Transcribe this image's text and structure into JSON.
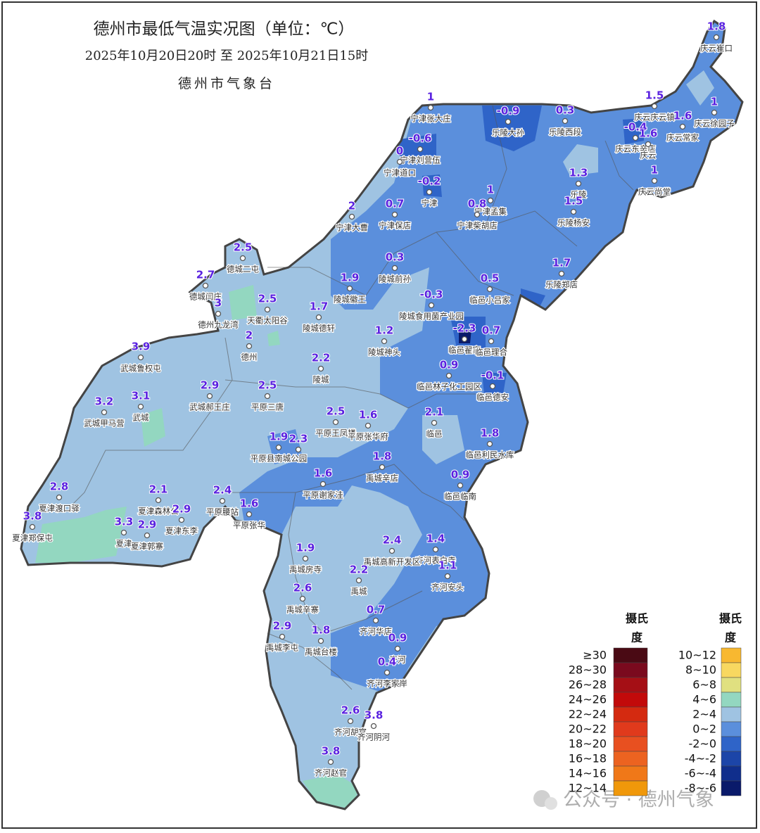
{
  "header": {
    "title": "德州市最低气温实况图（单位：℃）",
    "subtitle": "2025年10月20日20时  至  2025年10月21日15时",
    "agency": "德州市气象台"
  },
  "stations": [
    {
      "value": 1.8,
      "name": "庆云崔口"
    },
    {
      "value": 1,
      "name": "宁津张大庄"
    },
    {
      "value": -0.6,
      "name": "宁津刘营伍"
    },
    {
      "value": 0,
      "name": "宁津道口"
    },
    {
      "value": -0.9,
      "name": "乐陵大孙"
    },
    {
      "value": 0.3,
      "name": "乐陵西段"
    },
    {
      "value": 1.5,
      "name": "庆云庆云镇"
    },
    {
      "value": 1.6,
      "name": "庆云常家"
    },
    {
      "value": 1,
      "name": "庆云徐园子"
    },
    {
      "value": -0.4,
      "name": "庆云东辛店"
    },
    {
      "value": 1.6,
      "name": "庆云"
    },
    {
      "value": 1,
      "name": "庆云尚堂"
    },
    {
      "value": 1.3,
      "name": "乐陵"
    },
    {
      "value": 1.5,
      "name": "乐陵杨安"
    },
    {
      "value": -0.2,
      "name": "宁津"
    },
    {
      "value": 1,
      "name": "宁津孟集"
    },
    {
      "value": 0.8,
      "name": "宁津柴胡店"
    },
    {
      "value": 2,
      "name": "宁津大曹"
    },
    {
      "value": 0.7,
      "name": "宁津保店"
    },
    {
      "value": 2.5,
      "name": "德城二屯"
    },
    {
      "value": 2.7,
      "name": "德城闫庄"
    },
    {
      "value": 3,
      "name": "德州九龙湾"
    },
    {
      "value": 2.5,
      "name": "天衢太阳谷"
    },
    {
      "value": 0.3,
      "name": "陵城前孙"
    },
    {
      "value": 1.9,
      "name": "陵城徽王"
    },
    {
      "value": 1.7,
      "name": "陵城德轩"
    },
    {
      "value": -0.3,
      "name": "陵城食用菌产业园"
    },
    {
      "value": 0.5,
      "name": "临邑小吕家"
    },
    {
      "value": 1.7,
      "name": "乐陵郑店"
    },
    {
      "value": -2.3,
      "name": "临邑翟家"
    },
    {
      "value": 0.7,
      "name": "临邑理合"
    },
    {
      "value": 1.2,
      "name": "陵城神头"
    },
    {
      "value": 2,
      "name": "德州"
    },
    {
      "value": 2.2,
      "name": "陵城"
    },
    {
      "value": 3.9,
      "name": "武城鲁权屯"
    },
    {
      "value": 0.9,
      "name": "临邑林子化工园区"
    },
    {
      "value": -0.1,
      "name": "临邑德安"
    },
    {
      "value": 2.9,
      "name": "武城郝王庄"
    },
    {
      "value": 2.5,
      "name": "平原三唐"
    },
    {
      "value": 3.2,
      "name": "武城甲马营"
    },
    {
      "value": 3.1,
      "name": "武城"
    },
    {
      "value": 2.5,
      "name": "平原王凤楼"
    },
    {
      "value": 1.6,
      "name": "平原张华府"
    },
    {
      "value": 2.1,
      "name": "临邑"
    },
    {
      "value": 1.8,
      "name": "临邑利民水库"
    },
    {
      "value": 1.9,
      "name": "平原县南城公园"
    },
    {
      "value": 2.3
    },
    {
      "value": 1.8,
      "name": "禹城辛店"
    },
    {
      "value": 1.6,
      "name": "平原谢家洼"
    },
    {
      "value": 0.9,
      "name": "临邑临南"
    },
    {
      "value": 2.8,
      "name": "夏津渡口驿"
    },
    {
      "value": 2.1,
      "name": "夏津森林公"
    },
    {
      "value": 2.4,
      "name": "平原腰站"
    },
    {
      "value": 1.6,
      "name": "平原张华"
    },
    {
      "value": 2.9,
      "name": "夏津东李"
    },
    {
      "value": 3.8,
      "name": "夏津郑保屯"
    },
    {
      "value": 3.3,
      "name": "夏津"
    },
    {
      "value": 2.9,
      "name": "夏津郭寨"
    },
    {
      "value": 1.4,
      "name": "齐河表白寺"
    },
    {
      "value": 2.4,
      "name": "禹城高新开发区"
    },
    {
      "value": 1.9,
      "name": "禹城房寺"
    },
    {
      "value": 1.1,
      "name": "齐河安头"
    },
    {
      "value": 2.2,
      "name": "禹城"
    },
    {
      "value": 2.6,
      "name": "禹城辛寨"
    },
    {
      "value": 0.7,
      "name": "齐河华店"
    },
    {
      "value": 2.9,
      "name": "禹城李屯"
    },
    {
      "value": 1.8,
      "name": "禹城台楼"
    },
    {
      "value": 0.9,
      "name": "齐河"
    },
    {
      "value": 0.4,
      "name": "齐河李家岸"
    },
    {
      "value": 2.6,
      "name": "齐河胡官"
    },
    {
      "value": 3.8,
      "name": "齐河阴河"
    },
    {
      "value": 3.8,
      "name": "齐河赵官"
    }
  ],
  "legend": {
    "columns": [
      {
        "header": [
          "摄氏",
          "度"
        ],
        "items": [
          {
            "label": "≥30",
            "color": "#4a0a14"
          },
          {
            "label": "28~30",
            "color": "#7a0a1e"
          },
          {
            "label": "26~28",
            "color": "#a50f15"
          },
          {
            "label": "24~26",
            "color": "#c20a0a"
          },
          {
            "label": "22~24",
            "color": "#d42a10"
          },
          {
            "label": "20~22",
            "color": "#e03a1c"
          },
          {
            "label": "18~20",
            "color": "#e85020"
          },
          {
            "label": "16~18",
            "color": "#ec6320"
          },
          {
            "label": "14~16",
            "color": "#f07818"
          },
          {
            "label": "12~14",
            "color": "#f0980a"
          }
        ]
      },
      {
        "header": [
          "摄氏",
          "度"
        ],
        "items": [
          {
            "label": "10~12",
            "color": "#f8b830"
          },
          {
            "label": "8~10",
            "color": "#f8d860"
          },
          {
            "label": "6~8",
            "color": "#e0e080"
          },
          {
            "label": "4~6",
            "color": "#93d7c0"
          },
          {
            "label": "2~4",
            "color": "#9fc3e2"
          },
          {
            "label": "0~2",
            "color": "#5b8fdc"
          },
          {
            "label": "-2~0",
            "color": "#2f64c8"
          },
          {
            "label": "-4~-2",
            "color": "#1c45a8"
          },
          {
            "label": "-6~-4",
            "color": "#102e8c"
          },
          {
            "label": "-8~-6",
            "color": "#0a1a6a"
          }
        ]
      }
    ]
  },
  "watermark": "公众号 · 德州气象"
}
